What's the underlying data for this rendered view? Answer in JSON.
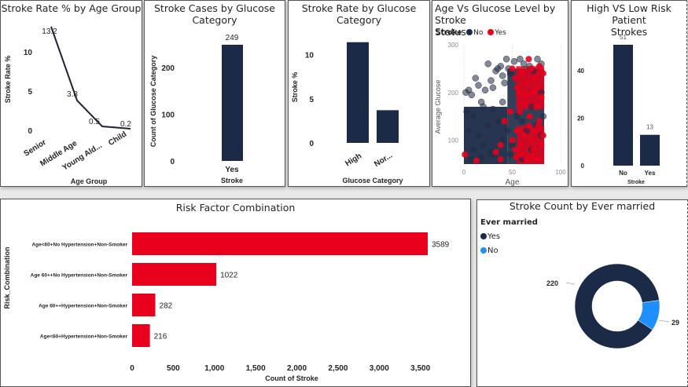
{
  "colors": {
    "navy": "#1b2a47",
    "red": "#e8001c",
    "blue": "#1f8fff",
    "scatter_no": "#1b2a47",
    "scatter_yes": "#e8001c"
  },
  "chart_data": [
    {
      "id": "age_group",
      "type": "line",
      "title": "Stroke Rate % by Age Group",
      "xlabel": "Age Group",
      "ylabel": "Stroke Rate %",
      "categories": [
        "Senior",
        "Middle Age",
        "Young Ald...",
        "Child"
      ],
      "values": [
        13.2,
        3.8,
        0.5,
        0.2
      ],
      "data_labels": [
        "13.2",
        "3.8",
        "0.5",
        "0.2"
      ],
      "yticks": [
        0,
        5,
        10
      ],
      "ylim": [
        0,
        13.2
      ],
      "grid": false
    },
    {
      "id": "glucose_cases",
      "type": "bar",
      "title": "Stroke Cases by Glucose\nCategory",
      "xlabel": "Stroke",
      "ylabel": "Count of Glucose Category",
      "categories": [
        "Yes"
      ],
      "values": [
        249
      ],
      "data_labels": [
        "249"
      ],
      "yticks": [
        0,
        100,
        200
      ],
      "ylim": [
        0,
        249
      ],
      "grid": false
    },
    {
      "id": "glucose_rate",
      "type": "bar",
      "title": "Stroke Rate by Glucose\nCategory",
      "xlabel": "Glucose Category",
      "ylabel": "Stroke %",
      "categories": [
        "High",
        "Nor..."
      ],
      "values": [
        11.4,
        3.7
      ],
      "yticks": [
        0,
        5,
        10
      ],
      "ylim": [
        0,
        12
      ],
      "grid": false
    },
    {
      "id": "scatter",
      "type": "scatter",
      "title": "Age Vs Glucose Level by Stroke\nStatus",
      "xlabel": "Age",
      "ylabel": "Average Glucose",
      "legend_title": "Stroke",
      "legend": [
        "No",
        "Yes"
      ],
      "legend_placement": "top-left",
      "xticks": [
        0,
        50,
        100
      ],
      "yticks": [
        100,
        200,
        300
      ],
      "xlim": [
        0,
        100
      ],
      "ylim": [
        50,
        300
      ],
      "series": [
        {
          "name": "No",
          "points": [
            [
              2,
              200
            ],
            [
              5,
              205
            ],
            [
              8,
              195
            ],
            [
              12,
              230
            ],
            [
              15,
              215
            ],
            [
              18,
              180
            ],
            [
              22,
              205
            ],
            [
              25,
              260
            ],
            [
              28,
              225
            ],
            [
              30,
              210
            ],
            [
              33,
              245
            ],
            [
              35,
              250
            ],
            [
              38,
              255
            ],
            [
              40,
              235
            ],
            [
              42,
              220
            ],
            [
              44,
              270
            ],
            [
              46,
              250
            ],
            [
              48,
              240
            ],
            [
              52,
              265
            ],
            [
              58,
              270
            ],
            [
              62,
              260
            ],
            [
              68,
              255
            ],
            [
              72,
              245
            ],
            [
              76,
              270
            ],
            [
              80,
              260
            ],
            [
              3,
              160
            ],
            [
              10,
              150
            ],
            [
              20,
              170
            ],
            [
              30,
              165
            ],
            [
              40,
              180
            ],
            [
              5,
              120
            ],
            [
              15,
              110
            ],
            [
              25,
              130
            ],
            [
              35,
              140
            ],
            [
              45,
              120
            ],
            [
              10,
              80
            ],
            [
              20,
              90
            ],
            [
              30,
              70
            ],
            [
              40,
              100
            ],
            [
              50,
              90
            ],
            [
              55,
              150
            ],
            [
              60,
              140
            ],
            [
              65,
              120
            ],
            [
              70,
              170
            ],
            [
              75,
              130
            ],
            [
              80,
              110
            ],
            [
              8,
              60
            ],
            [
              18,
              65
            ],
            [
              28,
              75
            ],
            [
              38,
              60
            ],
            [
              48,
              70
            ],
            [
              60,
              60
            ],
            [
              70,
              80
            ],
            [
              80,
              200
            ],
            [
              82,
              150
            ]
          ]
        },
        {
          "name": "Yes",
          "points": [
            [
              1,
              70
            ],
            [
              13,
              57
            ],
            [
              33,
              75
            ],
            [
              38,
              90
            ],
            [
              42,
              140
            ],
            [
              38,
              60
            ],
            [
              48,
              160
            ],
            [
              50,
              250
            ],
            [
              53,
              230
            ],
            [
              55,
              210
            ],
            [
              57,
              200
            ],
            [
              60,
              240
            ],
            [
              62,
              180
            ],
            [
              65,
              220
            ],
            [
              67,
              270
            ],
            [
              70,
              250
            ],
            [
              72,
              200
            ],
            [
              74,
              230
            ],
            [
              76,
              210
            ],
            [
              78,
              255
            ],
            [
              80,
              190
            ],
            [
              82,
              240
            ],
            [
              50,
              100
            ],
            [
              53,
              80
            ],
            [
              55,
              120
            ],
            [
              58,
              90
            ],
            [
              60,
              70
            ],
            [
              62,
              110
            ],
            [
              65,
              60
            ],
            [
              67,
              130
            ],
            [
              70,
              100
            ],
            [
              72,
              80
            ],
            [
              74,
              120
            ],
            [
              76,
              60
            ],
            [
              78,
              140
            ],
            [
              80,
              90
            ],
            [
              82,
              110
            ],
            [
              58,
              160
            ],
            [
              68,
              150
            ],
            [
              75,
              170
            ],
            [
              64,
              195
            ],
            [
              77,
              130
            ],
            [
              71,
              65
            ],
            [
              54,
              65
            ]
          ]
        }
      ]
    },
    {
      "id": "risk_patients",
      "type": "bar",
      "title": "High VS Low Risk Patient\nStrokes",
      "xlabel": "Stroke",
      "ylabel": "",
      "categories": [
        "No",
        "Yes"
      ],
      "values": [
        51,
        13
      ],
      "data_labels": [
        "51",
        "13"
      ],
      "yticks": [
        0,
        20,
        40
      ],
      "ylim": [
        0,
        51
      ],
      "grid": false
    },
    {
      "id": "risk_combination",
      "type": "bar",
      "orientation": "horizontal",
      "title": "Risk Factor Combination",
      "xlabel": "Count of Stroke",
      "ylabel": "Risk_Combination",
      "categories": [
        "Age<60+No Hypertension+Non-Smoker",
        "Age 60++No Hypertension+Non-Smoker",
        "Age 60++Hypertension+Non-Smoker",
        "Age<60+Hypertension+Non-Smoker"
      ],
      "values": [
        3589,
        1022,
        282,
        216
      ],
      "data_labels": [
        "3589",
        "1022",
        "282",
        "216"
      ],
      "xticks": [
        0,
        500,
        1000,
        1500,
        2000,
        2500,
        3000,
        3500
      ],
      "xtick_labels": [
        "0",
        "500",
        "1,000",
        "1,500",
        "2,000",
        "2,500",
        "3,000",
        "3,500"
      ],
      "xlim": [
        0,
        3750
      ],
      "grid": false
    },
    {
      "id": "ever_married",
      "type": "pie",
      "donut": true,
      "title": "Stroke Count by Ever married",
      "legend_title": "Ever married",
      "legend_placement": "top-left",
      "categories": [
        "Yes",
        "No"
      ],
      "values": [
        220,
        29
      ],
      "data_labels": [
        "220",
        "29"
      ]
    }
  ]
}
